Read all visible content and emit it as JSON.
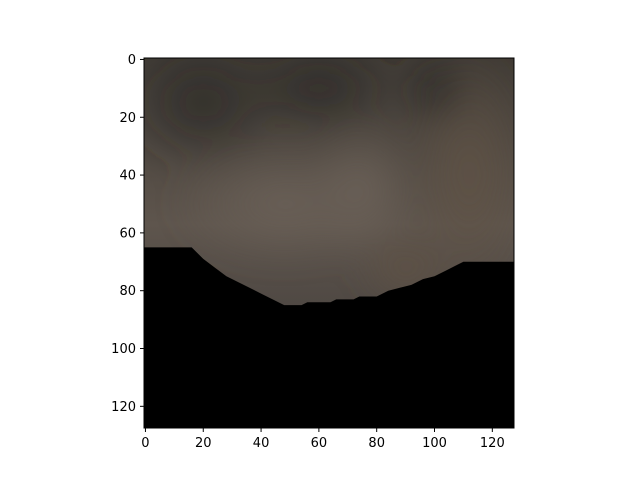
{
  "chart_data": {
    "type": "heatmap",
    "title": "",
    "xlabel": "",
    "ylabel": "",
    "xlim": [
      -0.5,
      127.5
    ],
    "ylim": [
      127.5,
      -0.5
    ],
    "x_ticks": [
      {
        "value": 0,
        "label": "0"
      },
      {
        "value": 20,
        "label": "20"
      },
      {
        "value": 40,
        "label": "40"
      },
      {
        "value": 60,
        "label": "60"
      },
      {
        "value": 80,
        "label": "80"
      },
      {
        "value": 100,
        "label": "100"
      },
      {
        "value": 120,
        "label": "120"
      }
    ],
    "y_ticks": [
      {
        "value": 0,
        "label": "0"
      },
      {
        "value": 20,
        "label": "20"
      },
      {
        "value": 40,
        "label": "40"
      },
      {
        "value": 60,
        "label": "60"
      },
      {
        "value": 80,
        "label": "80"
      },
      {
        "value": 100,
        "label": "100"
      },
      {
        "value": 120,
        "label": "120"
      }
    ],
    "grid": false,
    "image_description_colors": {
      "masked_region": "#000000",
      "texture_dark": "#3c3833",
      "texture_mid": "#6a5f56",
      "texture_right": "#5a4f44"
    },
    "mask_boundary": [
      [
        0,
        65
      ],
      [
        16,
        65
      ],
      [
        20,
        69
      ],
      [
        24,
        72
      ],
      [
        28,
        75
      ],
      [
        32,
        77
      ],
      [
        36,
        79
      ],
      [
        40,
        81
      ],
      [
        44,
        83
      ],
      [
        48,
        85
      ],
      [
        54,
        85
      ],
      [
        56,
        84
      ],
      [
        64,
        84
      ],
      [
        66,
        83
      ],
      [
        72,
        83
      ],
      [
        74,
        82
      ],
      [
        80,
        82
      ],
      [
        84,
        80
      ],
      [
        88,
        79
      ],
      [
        92,
        78
      ],
      [
        96,
        76
      ],
      [
        100,
        75
      ],
      [
        104,
        73
      ],
      [
        108,
        71
      ],
      [
        110,
        70
      ],
      [
        127,
        70
      ]
    ]
  }
}
